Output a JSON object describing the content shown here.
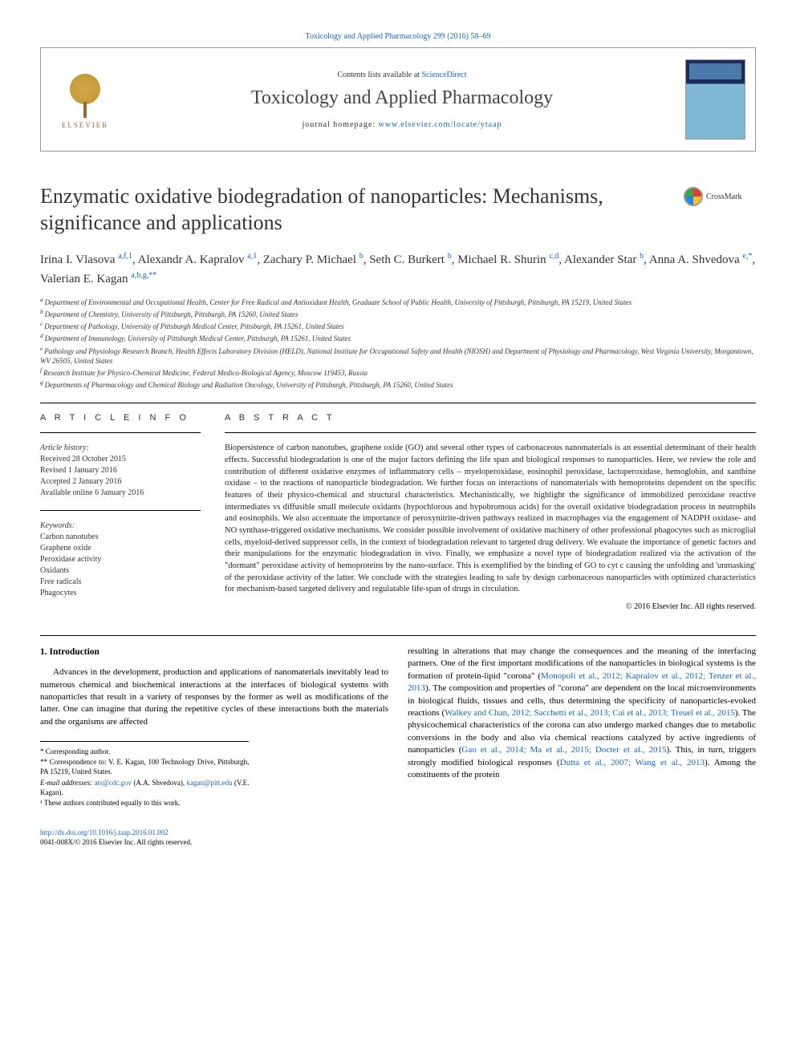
{
  "top_link": {
    "text": "Toxicology and Applied Pharmacology 299 (2016) 58–69"
  },
  "header": {
    "contents_prefix": "Contents lists available at ",
    "contents_link": "ScienceDirect",
    "journal_name": "Toxicology and Applied Pharmacology",
    "homepage_prefix": "journal homepage: ",
    "homepage_link": "www.elsevier.com/locate/ytaap",
    "publisher": "ELSEVIER"
  },
  "crossmark": {
    "label": "CrossMark"
  },
  "title": "Enzymatic oxidative biodegradation of nanoparticles: Mechanisms, significance and applications",
  "authors_html_parts": [
    {
      "name": "Irina I. Vlasova ",
      "sup": "a,f,1"
    },
    {
      "name": ", Alexandr A. Kapralov ",
      "sup": "a,1"
    },
    {
      "name": ", Zachary P. Michael ",
      "sup": "b"
    },
    {
      "name": ", Seth C. Burkert ",
      "sup": "b"
    },
    {
      "name": ", Michael R. Shurin ",
      "sup": "c,d"
    },
    {
      "name": ", Alexander Star ",
      "sup": "b"
    },
    {
      "name": ", Anna A. Shvedova ",
      "sup": "e,*",
      "link": true
    },
    {
      "name": ", Valerian E. Kagan ",
      "sup": "a,b,g,**",
      "link": true
    }
  ],
  "affiliations": [
    {
      "key": "a",
      "text": "Department of Environmental and Occupational Health, Center for Free Radical and Antioxidant Health, Graduate School of Public Health, University of Pittsburgh, Pittsburgh, PA 15219, United States"
    },
    {
      "key": "b",
      "text": "Department of Chemistry, University of Pittsburgh, Pittsburgh, PA 15260, United States"
    },
    {
      "key": "c",
      "text": "Department of Pathology, University of Pittsburgh Medical Center, Pittsburgh, PA 15261, United States"
    },
    {
      "key": "d",
      "text": "Department of Immunology, University of Pittsburgh Medical Center, Pittsburgh, PA 15261, United States"
    },
    {
      "key": "e",
      "text": "Pathology and Physiology Research Branch, Health Effects Laboratory Division (HELD), National Institute for Occupational Safety and Health (NIOSH) and Department of Physiology and Pharmacology, West Virginia University, Morgantown, WV 26505, United States"
    },
    {
      "key": "f",
      "text": "Research Institute for Physico-Chemical Medicine, Federal Medico-Biological Agency, Moscow 119453, Russia"
    },
    {
      "key": "g",
      "text": "Departments of Pharmacology and Chemical Biology and Radiation Oncology, University of Pittsburgh, Pittsburgh, PA 15260, United States"
    }
  ],
  "article_info": {
    "heading": "A R T I C L E   I N F O",
    "history_label": "Article history:",
    "history": [
      "Received 28 October 2015",
      "Revised 1 January 2016",
      "Accepted 2 January 2016",
      "Available online 6 January 2016"
    ],
    "keywords_label": "Keywords:",
    "keywords": [
      "Carbon nanotubes",
      "Graphene oxide",
      "Peroxidase activity",
      "Oxidants",
      "Free radicals",
      "Phagocytes"
    ]
  },
  "abstract": {
    "heading": "A B S T R A C T",
    "text": "Biopersistence of carbon nanotubes, graphene oxide (GO) and several other types of carbonaceous nanomaterials is an essential determinant of their health effects. Successful biodegradation is one of the major factors defining the life span and biological responses to nanoparticles. Here, we review the role and contribution of different oxidative enzymes of inflammatory cells – myeloperoxidase, eosinophil peroxidase, lactoperoxidase, hemoglobin, and xanthine oxidase – to the reactions of nanoparticle biodegradation. We further focus on interactions of nanomaterials with hemoproteins dependent on the specific features of their physico-chemical and structural characteristics. Mechanistically, we highlight the significance of immobilized peroxidase reactive intermediates vs diffusible small molecule oxidants (hypochlorous and hypobromous acids) for the overall oxidative biodegradation process in neutrophils and eosinophils. We also accentuate the importance of peroxynitrite-driven pathways realized in macrophages via the engagement of NADPH oxidase- and NO synthase-triggered oxidative mechanisms. We consider possible involvement of oxidative machinery of other professional phagocytes such as microglial cells, myeloid-derived suppressor cells, in the context of biodegradation relevant to targeted drug delivery. We evaluate the importance of genetic factors and their manipulations for the enzymatic biodegradation in vivo. Finally, we emphasize a novel type of biodegradation realized via the activation of the \"dormant\" peroxidase activity of hemoproteins by the nano-surface. This is exemplified by the binding of GO to cyt c causing the unfolding and 'unmasking' of the peroxidase activity of the latter. We conclude with the strategies leading to safe by design carbonaceous nanoparticles with optimized characteristics for mechanism-based targeted delivery and regulatable life-span of drugs in circulation.",
    "copyright": "© 2016 Elsevier Inc. All rights reserved."
  },
  "body": {
    "section_heading": "1. Introduction",
    "col1_p1": "Advances in the development, production and applications of nanomaterials inevitably lead to numerous chemical and biochemical interactions at the interfaces of biological systems with nanoparticles that result in a variety of responses by the former as well as modifications of the latter. One can imagine that during the repetitive cycles of these interactions both the materials and the organisms are affected",
    "col2_p1_pre": "resulting in alterations that may change the consequences and the meaning of the interfacing partners. One of the first important modifications of the nanoparticles in biological systems is the formation of protein-lipid \"corona\" (",
    "col2_p1_link1": "Monopoli et al., 2012; Kapralov et al., 2012; Tenzer et al., 2013",
    "col2_p1_mid1": "). The composition and properties of \"corona\" are dependent on the local microenvironments in biological fluids, tissues and cells, thus determining the specificity of nanoparticles-evoked reactions (",
    "col2_p1_link2": "Walkey and Chan, 2012; Sacchetti et al., 2013; Cai et al., 2013; Treuel et al., 2015",
    "col2_p1_mid2": "). The physicochemical characteristics of the corona can also undergo marked changes due to metabolic conversions in the body and also via chemical reactions catalyzed by active ingredients of nanoparticles (",
    "col2_p1_link3": "Gao et al., 2014; Ma et al., 2015; Docter et al., 2015",
    "col2_p1_mid3": "). This, in turn, triggers strongly modified biological responses (",
    "col2_p1_link4": "Dutta et al., 2007; Wang et al., 2013",
    "col2_p1_end": "). Among the constituents of the protein"
  },
  "footnotes": {
    "corr1": "* Corresponding author.",
    "corr2": "** Correspondence to: V. E. Kagan, 100 Technology Drive, Pittsburgh, PA 15219, United States.",
    "email_label": "E-mail addresses: ",
    "email1": "ats@cdc.gov",
    "email1_after": " (A.A. Shvedova), ",
    "email2": "kagan@pitt.edu",
    "email2_after": " (V.E. Kagan).",
    "contrib": "¹ These authors contributed equally to this work."
  },
  "footer": {
    "doi": "http://dx.doi.org/10.1016/j.taap.2016.01.002",
    "issn_line": "0041-008X/© 2016 Elsevier Inc. All rights reserved."
  },
  "colors": {
    "link": "#1565c0",
    "text": "#222222",
    "border": "#999999",
    "elsevier_gold": "#c49a3a"
  }
}
